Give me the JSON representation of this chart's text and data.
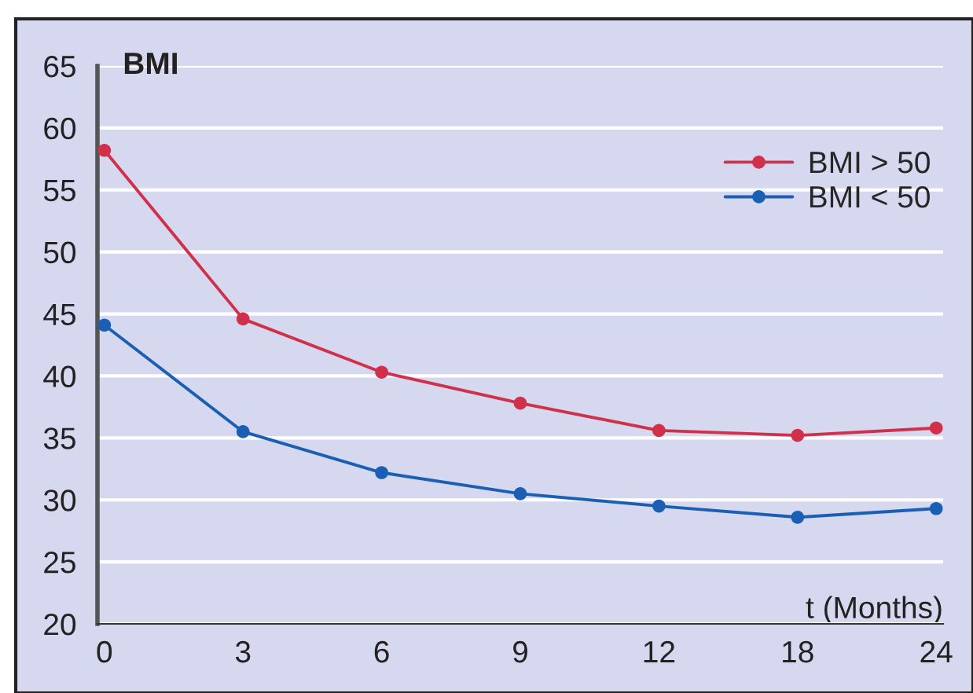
{
  "chart_data": {
    "type": "line",
    "xlabel": "t (Months)",
    "ylabel": "BMI",
    "categories": [
      "0",
      "3",
      "6",
      "9",
      "12",
      "18",
      "24"
    ],
    "series": [
      {
        "name": "BMI > 50",
        "color": "#d0304a",
        "values": [
          58.2,
          44.6,
          40.3,
          37.8,
          35.6,
          35.2,
          35.8
        ]
      },
      {
        "name": "BMI < 50",
        "color": "#1a5fb4",
        "values": [
          44.1,
          35.5,
          32.2,
          30.5,
          29.5,
          28.6,
          29.3
        ]
      }
    ],
    "ylim": [
      20,
      65
    ],
    "yticks": [
      20,
      25,
      30,
      35,
      40,
      45,
      50,
      55,
      60,
      65
    ],
    "grid": "y",
    "legend": "top right",
    "marker": "circle",
    "line_style": "solid"
  }
}
